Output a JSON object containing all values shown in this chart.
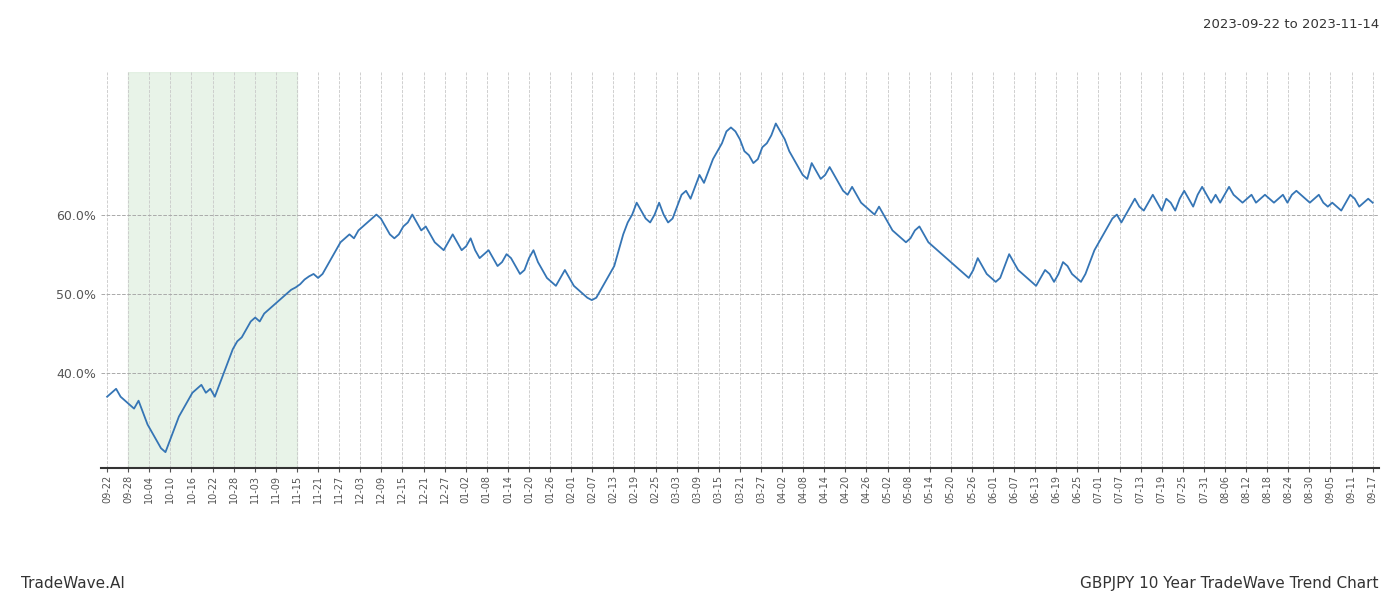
{
  "title_top_right": "2023-09-22 to 2023-11-14",
  "title_bottom_left": "TradeWave.AI",
  "title_bottom_right": "GBPJPY 10 Year TradeWave Trend Chart",
  "line_color": "#3575b5",
  "line_width": 1.3,
  "bg_color": "#ffffff",
  "shade_color": "#d6ead6",
  "shade_alpha": 0.55,
  "ylim": [
    28,
    78
  ],
  "yticks": [
    40.0,
    50.0,
    60.0
  ],
  "shade_xstart": 1,
  "shade_xend": 9,
  "x_labels": [
    "09-22",
    "09-28",
    "10-04",
    "10-10",
    "10-16",
    "10-22",
    "10-28",
    "11-03",
    "11-09",
    "11-15",
    "11-21",
    "11-27",
    "12-03",
    "12-09",
    "12-15",
    "12-21",
    "12-27",
    "01-02",
    "01-08",
    "01-14",
    "01-20",
    "01-26",
    "02-01",
    "02-07",
    "02-13",
    "02-19",
    "02-25",
    "03-03",
    "03-09",
    "03-15",
    "03-21",
    "03-27",
    "04-02",
    "04-08",
    "04-14",
    "04-20",
    "04-26",
    "05-02",
    "05-08",
    "05-14",
    "05-20",
    "05-26",
    "06-01",
    "06-07",
    "06-13",
    "06-19",
    "06-25",
    "07-01",
    "07-07",
    "07-13",
    "07-19",
    "07-25",
    "07-31",
    "08-06",
    "08-12",
    "08-18",
    "08-24",
    "08-30",
    "09-05",
    "09-11",
    "09-17"
  ],
  "y_values": [
    37.0,
    37.5,
    38.0,
    37.0,
    36.5,
    36.0,
    35.5,
    36.5,
    35.0,
    33.5,
    32.5,
    31.5,
    30.5,
    30.0,
    31.5,
    33.0,
    34.5,
    35.5,
    36.5,
    37.5,
    38.0,
    38.5,
    37.5,
    38.0,
    37.0,
    38.5,
    40.0,
    41.5,
    43.0,
    44.0,
    44.5,
    45.5,
    46.5,
    47.0,
    46.5,
    47.5,
    48.0,
    48.5,
    49.0,
    49.5,
    50.0,
    50.5,
    50.8,
    51.2,
    51.8,
    52.2,
    52.5,
    52.0,
    52.5,
    53.5,
    54.5,
    55.5,
    56.5,
    57.0,
    57.5,
    57.0,
    58.0,
    58.5,
    59.0,
    59.5,
    60.0,
    59.5,
    58.5,
    57.5,
    57.0,
    57.5,
    58.5,
    59.0,
    60.0,
    59.0,
    58.0,
    58.5,
    57.5,
    56.5,
    56.0,
    55.5,
    56.5,
    57.5,
    56.5,
    55.5,
    56.0,
    57.0,
    55.5,
    54.5,
    55.0,
    55.5,
    54.5,
    53.5,
    54.0,
    55.0,
    54.5,
    53.5,
    52.5,
    53.0,
    54.5,
    55.5,
    54.0,
    53.0,
    52.0,
    51.5,
    51.0,
    52.0,
    53.0,
    52.0,
    51.0,
    50.5,
    50.0,
    49.5,
    49.2,
    49.5,
    50.5,
    51.5,
    52.5,
    53.5,
    55.5,
    57.5,
    59.0,
    60.0,
    61.5,
    60.5,
    59.5,
    59.0,
    60.0,
    61.5,
    60.0,
    59.0,
    59.5,
    61.0,
    62.5,
    63.0,
    62.0,
    63.5,
    65.0,
    64.0,
    65.5,
    67.0,
    68.0,
    69.0,
    70.5,
    71.0,
    70.5,
    69.5,
    68.0,
    67.5,
    66.5,
    67.0,
    68.5,
    69.0,
    70.0,
    71.5,
    70.5,
    69.5,
    68.0,
    67.0,
    66.0,
    65.0,
    64.5,
    66.5,
    65.5,
    64.5,
    65.0,
    66.0,
    65.0,
    64.0,
    63.0,
    62.5,
    63.5,
    62.5,
    61.5,
    61.0,
    60.5,
    60.0,
    61.0,
    60.0,
    59.0,
    58.0,
    57.5,
    57.0,
    56.5,
    57.0,
    58.0,
    58.5,
    57.5,
    56.5,
    56.0,
    55.5,
    55.0,
    54.5,
    54.0,
    53.5,
    53.0,
    52.5,
    52.0,
    53.0,
    54.5,
    53.5,
    52.5,
    52.0,
    51.5,
    52.0,
    53.5,
    55.0,
    54.0,
    53.0,
    52.5,
    52.0,
    51.5,
    51.0,
    52.0,
    53.0,
    52.5,
    51.5,
    52.5,
    54.0,
    53.5,
    52.5,
    52.0,
    51.5,
    52.5,
    54.0,
    55.5,
    56.5,
    57.5,
    58.5,
    59.5,
    60.0,
    59.0,
    60.0,
    61.0,
    62.0,
    61.0,
    60.5,
    61.5,
    62.5,
    61.5,
    60.5,
    62.0,
    61.5,
    60.5,
    62.0,
    63.0,
    62.0,
    61.0,
    62.5,
    63.5,
    62.5,
    61.5,
    62.5,
    61.5,
    62.5,
    63.5,
    62.5,
    62.0,
    61.5,
    62.0,
    62.5,
    61.5,
    62.0,
    62.5,
    62.0,
    61.5,
    62.0,
    62.5,
    61.5,
    62.5,
    63.0,
    62.5,
    62.0,
    61.5,
    62.0,
    62.5,
    61.5,
    61.0,
    61.5,
    61.0,
    60.5,
    61.5,
    62.5,
    62.0,
    61.0,
    61.5,
    62.0,
    61.5
  ]
}
